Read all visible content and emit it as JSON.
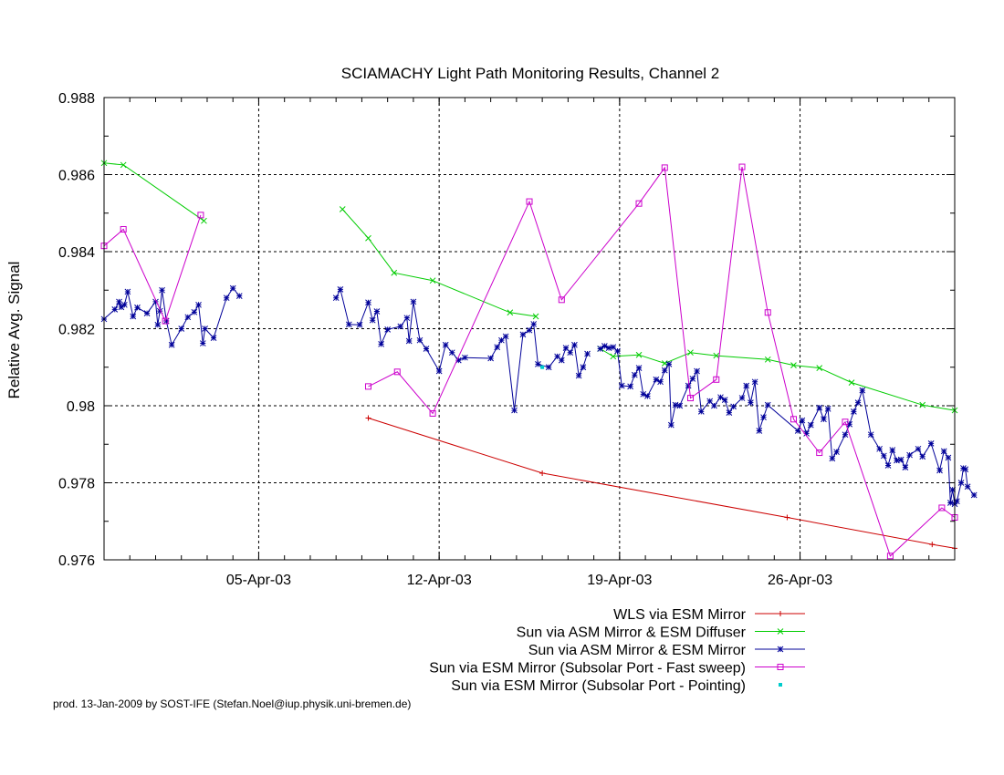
{
  "chart_data": {
    "type": "line",
    "title": "SCIAMACHY Light Path Monitoring Results, Channel 2",
    "xlabel": "",
    "ylabel": "Relative Avg. Signal",
    "xlim": [
      "2003-03-30",
      "2003-05-02"
    ],
    "ylim": [
      0.976,
      0.988
    ],
    "yticks": [
      "0.976",
      "0.978",
      "0.98",
      "0.982",
      "0.984",
      "0.986",
      "0.988"
    ],
    "xticks": [
      {
        "date": "2003-04-05",
        "label": "05-Apr-03"
      },
      {
        "date": "2003-04-12",
        "label": "12-Apr-03"
      },
      {
        "date": "2003-04-19",
        "label": "19-Apr-03"
      },
      {
        "date": "2003-04-26",
        "label": "26-Apr-03"
      }
    ],
    "grid": true,
    "legend_position": "bottom-right",
    "footer": "prod. 13-Jan-2009 by SOST-IFE (Stefan.Noel@iup.physik.uni-bremen.de)",
    "series": [
      {
        "name": "WLS via ESM Mirror",
        "color": "#cc0000",
        "marker": "plus",
        "points": [
          [
            "2003-04-09 06:00",
            0.97968
          ],
          [
            "2003-04-16 00:00",
            0.97825
          ],
          [
            "2003-04-25 12:00",
            0.9771
          ],
          [
            "2003-05-01 03:00",
            0.9764
          ],
          [
            "2003-05-02 00:00",
            0.9763
          ]
        ]
      },
      {
        "name": "Sun via ASM Mirror & ESM Diffuser",
        "color": "#00cc00",
        "marker": "x",
        "points": [
          [
            [
              "2003-03-30 00:00",
              0.9863
            ],
            [
              "2003-03-30 18:00",
              0.98625
            ],
            [
              "2003-04-02 21:00",
              0.9848
            ]
          ],
          [
            [
              "2003-04-08 06:00",
              0.9851
            ],
            [
              "2003-04-09 06:00",
              0.98435
            ],
            [
              "2003-04-10 06:00",
              0.98345
            ],
            [
              "2003-04-11 18:00",
              0.98325
            ],
            [
              "2003-04-14 18:00",
              0.98242
            ],
            [
              "2003-04-15 18:00",
              0.98232
            ]
          ],
          [
            [
              "2003-04-18 06:00",
              0.98148
            ],
            [
              "2003-04-18 18:00",
              0.98128
            ],
            [
              "2003-04-19 18:00",
              0.98132
            ],
            [
              "2003-04-20 18:00",
              0.9811
            ],
            [
              "2003-04-21 18:00",
              0.98138
            ],
            [
              "2003-04-22 18:00",
              0.9813
            ],
            [
              "2003-04-24 18:00",
              0.9812
            ],
            [
              "2003-04-25 18:00",
              0.98105
            ],
            [
              "2003-04-26 18:00",
              0.98098
            ],
            [
              "2003-04-28 00:00",
              0.9806
            ],
            [
              "2003-04-30 18:00",
              0.98002
            ],
            [
              "2003-05-02 00:00",
              0.97988
            ]
          ]
        ]
      },
      {
        "name": "Sun via ASM Mirror & ESM Mirror",
        "color": "#000099",
        "marker": "star",
        "points": [
          [
            [
              "2003-03-30 00:00",
              0.98225
            ],
            [
              "2003-03-30 10:00",
              0.9825
            ],
            [
              "2003-03-30 14:00",
              0.9827
            ],
            [
              "2003-03-30 16:00",
              0.98256
            ],
            [
              "2003-03-30 19:00",
              0.98262
            ],
            [
              "2003-03-30 22:00",
              0.98296
            ],
            [
              "2003-03-31 03:00",
              0.98232
            ],
            [
              "2003-03-31 07:00",
              0.98255
            ],
            [
              "2003-03-31 16:00",
              0.9824
            ],
            [
              "2003-04-01 00:00",
              0.9827
            ],
            [
              "2003-04-01 02:00",
              0.9821
            ],
            [
              "2003-04-01 04:00",
              0.98246
            ],
            [
              "2003-04-01 06:00",
              0.983
            ],
            [
              "2003-04-01 10:00",
              0.9822
            ],
            [
              "2003-04-01 15:00",
              0.98158
            ],
            [
              "2003-04-02 00:00",
              0.982
            ],
            [
              "2003-04-02 06:00",
              0.9823
            ],
            [
              "2003-04-02 12:00",
              0.98243
            ],
            [
              "2003-04-02 16:00",
              0.98262
            ],
            [
              "2003-04-02 20:00",
              0.98162
            ],
            [
              "2003-04-02 22:00",
              0.982
            ],
            [
              "2003-04-03 06:00",
              0.98176
            ],
            [
              "2003-04-03 18:00",
              0.9828
            ],
            [
              "2003-04-04 00:00",
              0.98305
            ],
            [
              "2003-04-04 06:00",
              0.98285
            ]
          ],
          [
            [
              "2003-04-08 00:00",
              0.9828
            ],
            [
              "2003-04-08 04:00",
              0.98302
            ],
            [
              "2003-04-08 12:00",
              0.98211
            ],
            [
              "2003-04-08 22:00",
              0.9821
            ],
            [
              "2003-04-09 06:00",
              0.98268
            ],
            [
              "2003-04-09 10:00",
              0.98222
            ],
            [
              "2003-04-09 14:00",
              0.98245
            ],
            [
              "2003-04-09 18:00",
              0.9816
            ],
            [
              "2003-04-10 00:00",
              0.98198
            ],
            [
              "2003-04-10 12:00",
              0.98206
            ],
            [
              "2003-04-10 18:00",
              0.98228
            ],
            [
              "2003-04-10 20:00",
              0.98168
            ],
            [
              "2003-04-11 00:00",
              0.9827
            ],
            [
              "2003-04-11 06:00",
              0.9817
            ],
            [
              "2003-04-11 12:00",
              0.98148
            ],
            [
              "2003-04-12 00:00",
              0.9809
            ],
            [
              "2003-04-12 06:00",
              0.98158
            ],
            [
              "2003-04-12 12:00",
              0.98138
            ],
            [
              "2003-04-12 18:00",
              0.98118
            ],
            [
              "2003-04-13 00:00",
              0.98125
            ],
            [
              "2003-04-14 00:00",
              0.98123
            ],
            [
              "2003-04-14 06:00",
              0.98152
            ],
            [
              "2003-04-14 10:00",
              0.9817
            ],
            [
              "2003-04-14 14:00",
              0.9818
            ],
            [
              "2003-04-14 22:00",
              0.97988
            ],
            [
              "2003-04-15 06:00",
              0.98185
            ],
            [
              "2003-04-15 12:00",
              0.98196
            ],
            [
              "2003-04-15 16:00",
              0.98212
            ],
            [
              "2003-04-15 20:00",
              0.98108
            ],
            [
              "2003-04-16 06:00",
              0.981
            ],
            [
              "2003-04-16 14:00",
              0.98128
            ],
            [
              "2003-04-16 18:00",
              0.98118
            ],
            [
              "2003-04-16 22:00",
              0.9815
            ],
            [
              "2003-04-17 02:00",
              0.98138
            ],
            [
              "2003-04-17 06:00",
              0.98158
            ],
            [
              "2003-04-17 10:00",
              0.98078
            ],
            [
              "2003-04-17 14:00",
              0.981
            ],
            [
              "2003-04-17 18:00",
              0.98135
            ]
          ],
          [
            [
              "2003-04-18 06:00",
              0.98148
            ],
            [
              "2003-04-18 10:00",
              0.98155
            ],
            [
              "2003-04-18 14:00",
              0.9815
            ],
            [
              "2003-04-18 18:00",
              0.98152
            ],
            [
              "2003-04-18 22:00",
              0.98142
            ],
            [
              "2003-04-19 02:00",
              0.98052
            ],
            [
              "2003-04-19 10:00",
              0.9805
            ],
            [
              "2003-04-19 14:00",
              0.9808
            ],
            [
              "2003-04-19 18:00",
              0.98098
            ],
            [
              "2003-04-19 22:00",
              0.9803
            ],
            [
              "2003-04-20 02:00",
              0.98025
            ],
            [
              "2003-04-20 10:00",
              0.98068
            ],
            [
              "2003-04-20 14:00",
              0.98062
            ],
            [
              "2003-04-20 18:00",
              0.98092
            ],
            [
              "2003-04-20 22:00",
              0.98108
            ],
            [
              "2003-04-21 00:00",
              0.9795
            ],
            [
              "2003-04-21 04:00",
              0.98002
            ],
            [
              "2003-04-21 08:00",
              0.98
            ],
            [
              "2003-04-21 16:00",
              0.98052
            ],
            [
              "2003-04-21 20:00",
              0.9807
            ],
            [
              "2003-04-22 00:00",
              0.9809
            ],
            [
              "2003-04-22 04:00",
              0.97985
            ],
            [
              "2003-04-22 12:00",
              0.98012
            ],
            [
              "2003-04-22 16:00",
              0.98
            ],
            [
              "2003-04-22 22:00",
              0.98022
            ],
            [
              "2003-04-23 02:00",
              0.98015
            ],
            [
              "2003-04-23 06:00",
              0.97982
            ],
            [
              "2003-04-23 10:00",
              0.97998
            ],
            [
              "2003-04-23 18:00",
              0.9802
            ],
            [
              "2003-04-23 22:00",
              0.98052
            ],
            [
              "2003-04-24 02:00",
              0.98008
            ],
            [
              "2003-04-24 06:00",
              0.98062
            ],
            [
              "2003-04-24 10:00",
              0.97935
            ],
            [
              "2003-04-24 14:00",
              0.9797
            ],
            [
              "2003-04-24 18:00",
              0.98002
            ],
            [
              "2003-04-25 22:00",
              0.97935
            ],
            [
              "2003-04-26 02:00",
              0.97962
            ],
            [
              "2003-04-26 06:00",
              0.97928
            ],
            [
              "2003-04-26 10:00",
              0.9795
            ],
            [
              "2003-04-26 18:00",
              0.97995
            ],
            [
              "2003-04-26 22:00",
              0.97965
            ],
            [
              "2003-04-27 02:00",
              0.97992
            ],
            [
              "2003-04-27 06:00",
              0.97863
            ],
            [
              "2003-04-27 10:00",
              0.9788
            ],
            [
              "2003-04-27 18:00",
              0.97925
            ],
            [
              "2003-04-27 22:00",
              0.97952
            ],
            [
              "2003-04-28 02:00",
              0.97985
            ],
            [
              "2003-04-28 06:00",
              0.98008
            ],
            [
              "2003-04-28 10:00",
              0.9804
            ],
            [
              "2003-04-28 18:00",
              0.97925
            ],
            [
              "2003-04-29 02:00",
              0.97888
            ],
            [
              "2003-04-29 06:00",
              0.9787
            ],
            [
              "2003-04-29 10:00",
              0.97845
            ],
            [
              "2003-04-29 14:00",
              0.97885
            ],
            [
              "2003-04-29 18:00",
              0.97858
            ],
            [
              "2003-04-29 22:00",
              0.9786
            ],
            [
              "2003-04-30 02:00",
              0.9784
            ],
            [
              "2003-04-30 06:00",
              0.97872
            ],
            [
              "2003-04-30 14:00",
              0.97888
            ],
            [
              "2003-04-30 18:00",
              0.97868
            ],
            [
              "2003-05-01 02:00",
              0.97902
            ],
            [
              "2003-05-01 10:00",
              0.97832
            ],
            [
              "2003-05-01 14:00",
              0.97882
            ],
            [
              "2003-05-01 18:00",
              0.97865
            ],
            [
              "2003-05-01 20:00",
              0.97748
            ],
            [
              "2003-05-01 22:00",
              0.97782
            ],
            [
              "2003-05-02 00:00",
              0.97745
            ],
            [
              "2003-05-02 02:00",
              0.97752
            ],
            [
              "2003-05-02 06:00",
              0.978
            ],
            [
              "2003-05-02 08:00",
              0.97838
            ],
            [
              "2003-05-02 10:00",
              0.97835
            ],
            [
              "2003-05-02 12:00",
              0.9779
            ],
            [
              "2003-05-02 18:00",
              0.97768
            ]
          ]
        ]
      },
      {
        "name": "Sun via ESM Mirror (Subsolar Port - Fast sweep)",
        "color": "#cc00cc",
        "marker": "square",
        "points": [
          [
            [
              "2003-03-30 00:00",
              0.98415
            ],
            [
              "2003-03-30 18:00",
              0.98458
            ],
            [
              "2003-04-01 09:00",
              0.9822
            ],
            [
              "2003-04-02 18:00",
              0.98495
            ]
          ],
          [
            [
              "2003-04-09 06:00",
              0.9805
            ],
            [
              "2003-04-10 09:00",
              0.98088
            ],
            [
              "2003-04-11 18:00",
              0.9798
            ],
            [
              "2003-04-15 12:00",
              0.9853
            ],
            [
              "2003-04-16 18:00",
              0.98275
            ],
            [
              "2003-04-19 18:00",
              0.98525
            ],
            [
              "2003-04-20 18:00",
              0.98618
            ],
            [
              "2003-04-21 18:00",
              0.9802
            ],
            [
              "2003-04-22 18:00",
              0.98068
            ],
            [
              "2003-04-23 18:00",
              0.9862
            ],
            [
              "2003-04-24 18:00",
              0.98242
            ],
            [
              "2003-04-25 18:00",
              0.97965
            ],
            [
              "2003-04-26 18:00",
              0.97878
            ],
            [
              "2003-04-27 18:00",
              0.97958
            ],
            [
              "2003-04-29 12:00",
              0.9761
            ],
            [
              "2003-05-01 12:00",
              0.97735
            ],
            [
              "2003-05-02 00:00",
              0.9771
            ]
          ]
        ]
      },
      {
        "name": "Sun via ESM Mirror (Subsolar Port - Pointing)",
        "color": "#00cccc",
        "marker": "dot",
        "points": [
          [
            "2003-04-16 00:00",
            0.981
          ]
        ]
      }
    ]
  }
}
